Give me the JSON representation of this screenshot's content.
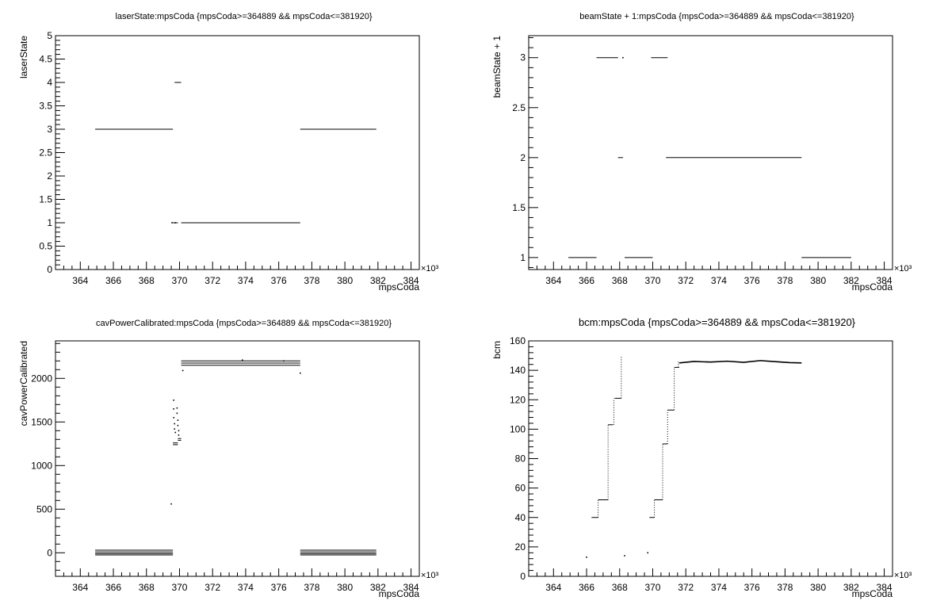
{
  "chart_data": [
    {
      "type": "scatter",
      "title": "laserState:mpsCoda {mpsCoda>=364889 && mpsCoda<=381920}",
      "xlabel": "mpsCoda",
      "ylabel": "laserState",
      "x_multiplier": "×10³",
      "xlim": [
        362.5,
        384.5
      ],
      "ylim": [
        0,
        5
      ],
      "x_ticks": [
        364,
        366,
        368,
        370,
        372,
        374,
        376,
        378,
        380,
        382,
        384
      ],
      "y_ticks": [
        0,
        0.5,
        1,
        1.5,
        2,
        2.5,
        3,
        3.5,
        4,
        4.5,
        5
      ],
      "y_tick_labels": [
        "0",
        "0.5",
        "1",
        "1.5",
        "2",
        "2.5",
        "3",
        "3.5",
        "4",
        "4.5",
        "5"
      ],
      "grid": false,
      "segments": [
        {
          "x": [
            364.9,
            369.6
          ],
          "y": 3
        },
        {
          "x": [
            369.7,
            370.1
          ],
          "y": 4
        },
        {
          "x": [
            369.6,
            369.9
          ],
          "y": 1
        },
        {
          "x": [
            370.1,
            377.3
          ],
          "y": 1
        },
        {
          "x": [
            377.3,
            381.9
          ],
          "y": 3
        }
      ],
      "points": [
        {
          "x": 369.55,
          "y": 1
        },
        {
          "x": 369.75,
          "y": 1
        }
      ]
    },
    {
      "type": "scatter",
      "title": "beamState + 1:mpsCoda {mpsCoda>=364889 && mpsCoda<=381920}",
      "xlabel": "mpsCoda",
      "ylabel": "beamState + 1",
      "x_multiplier": "×10³",
      "xlim": [
        362.5,
        384.5
      ],
      "ylim": [
        0.88,
        3.22
      ],
      "x_ticks": [
        364,
        366,
        368,
        370,
        372,
        374,
        376,
        378,
        380,
        382,
        384
      ],
      "y_ticks": [
        1,
        1.5,
        2,
        2.5,
        3
      ],
      "y_tick_labels": [
        "1",
        "1.5",
        "2",
        "2.5",
        "3"
      ],
      "grid": false,
      "segments": [
        {
          "x": [
            364.9,
            366.6
          ],
          "y": 1
        },
        {
          "x": [
            366.6,
            367.9
          ],
          "y": 3
        },
        {
          "x": [
            367.9,
            368.2
          ],
          "y": 2
        },
        {
          "x": [
            368.3,
            370.0
          ],
          "y": 1
        },
        {
          "x": [
            369.9,
            370.9
          ],
          "y": 3
        },
        {
          "x": [
            370.8,
            379.0
          ],
          "y": 2
        },
        {
          "x": [
            379.0,
            382.0
          ],
          "y": 1
        }
      ],
      "points": [
        {
          "x": 368.2,
          "y": 3
        }
      ]
    },
    {
      "type": "scatter",
      "title": "cavPowerCalibrated:mpsCoda {mpsCoda>=364889 && mpsCoda<=381920}",
      "xlabel": "mpsCoda",
      "ylabel": "cavPowerCalibrated",
      "x_multiplier": "×10³",
      "xlim": [
        362.5,
        384.5
      ],
      "ylim": [
        -270,
        2430
      ],
      "x_ticks": [
        364,
        366,
        368,
        370,
        372,
        374,
        376,
        378,
        380,
        382,
        384
      ],
      "y_ticks": [
        0,
        500,
        1000,
        1500,
        2000
      ],
      "y_tick_labels": [
        "0",
        "500",
        "1000",
        "1500",
        "2000"
      ],
      "grid": false,
      "segments": [
        {
          "x": [
            364.9,
            369.6
          ],
          "y": 30
        },
        {
          "x": [
            364.9,
            369.6
          ],
          "y": 10
        },
        {
          "x": [
            364.9,
            369.6
          ],
          "y": -10
        },
        {
          "x": [
            364.9,
            369.6
          ],
          "y": -25
        },
        {
          "x": [
            369.6,
            369.9
          ],
          "y": 1260
        },
        {
          "x": [
            369.6,
            369.9
          ],
          "y": 1240
        },
        {
          "x": [
            369.9,
            370.1
          ],
          "y": 1310
        },
        {
          "x": [
            369.9,
            370.1
          ],
          "y": 1290
        },
        {
          "x": [
            370.1,
            377.3
          ],
          "y": 2200
        },
        {
          "x": [
            370.1,
            377.3
          ],
          "y": 2175
        },
        {
          "x": [
            370.1,
            377.3
          ],
          "y": 2150
        },
        {
          "x": [
            377.3,
            381.9
          ],
          "y": 30
        },
        {
          "x": [
            377.3,
            381.9
          ],
          "y": 10
        },
        {
          "x": [
            377.3,
            381.9
          ],
          "y": -10
        },
        {
          "x": [
            377.3,
            381.9
          ],
          "y": -25
        }
      ],
      "points": [
        {
          "x": 369.5,
          "y": 560
        },
        {
          "x": 369.65,
          "y": 1750
        },
        {
          "x": 369.65,
          "y": 1650
        },
        {
          "x": 369.65,
          "y": 1550
        },
        {
          "x": 369.7,
          "y": 1480
        },
        {
          "x": 369.7,
          "y": 1420
        },
        {
          "x": 369.75,
          "y": 1380
        },
        {
          "x": 369.85,
          "y": 1660
        },
        {
          "x": 369.85,
          "y": 1600
        },
        {
          "x": 369.9,
          "y": 1520
        },
        {
          "x": 369.9,
          "y": 1460
        },
        {
          "x": 369.95,
          "y": 1400
        },
        {
          "x": 369.95,
          "y": 1350
        },
        {
          "x": 370.2,
          "y": 2090
        },
        {
          "x": 377.3,
          "y": 2060
        },
        {
          "x": 376.3,
          "y": 2200
        },
        {
          "x": 373.8,
          "y": 2210
        }
      ]
    },
    {
      "type": "scatter",
      "title": "bcm:mpsCoda {mpsCoda>=364889 && mpsCoda<=381920}",
      "xlabel": "mpsCoda",
      "ylabel": "bcm",
      "x_multiplier": "×10³",
      "xlim": [
        362.5,
        384.5
      ],
      "ylim": [
        0,
        160
      ],
      "x_ticks": [
        364,
        366,
        368,
        370,
        372,
        374,
        376,
        378,
        380,
        382,
        384
      ],
      "y_ticks": [
        0,
        20,
        40,
        60,
        80,
        100,
        120,
        140,
        160
      ],
      "y_tick_labels": [
        "0",
        "20",
        "40",
        "60",
        "80",
        "100",
        "120",
        "140",
        "160"
      ],
      "grid": false,
      "segments": [
        {
          "x": [
            366.3,
            366.7
          ],
          "y": 40
        },
        {
          "x": [
            366.7,
            367.3
          ],
          "y": 52
        },
        {
          "x": [
            367.3,
            367.6
          ],
          "y": 103
        },
        {
          "x": [
            367.7,
            368.1
          ],
          "y": 121
        },
        {
          "x": [
            369.8,
            370.1
          ],
          "y": 40
        },
        {
          "x": [
            370.1,
            370.6
          ],
          "y": 52
        },
        {
          "x": [
            370.6,
            370.9
          ],
          "y": 90
        },
        {
          "x": [
            370.9,
            371.3
          ],
          "y": 113
        },
        {
          "x": [
            371.3,
            371.6
          ],
          "y": 142
        }
      ],
      "steps": [
        {
          "x": 366.7,
          "y": [
            40,
            52
          ]
        },
        {
          "x": 367.3,
          "y": [
            52,
            103
          ]
        },
        {
          "x": 367.65,
          "y": [
            103,
            121
          ]
        },
        {
          "x": 368.1,
          "y": [
            121,
            149
          ]
        },
        {
          "x": 370.1,
          "y": [
            40,
            52
          ]
        },
        {
          "x": 370.6,
          "y": [
            52,
            90
          ]
        },
        {
          "x": 370.9,
          "y": [
            90,
            113
          ]
        },
        {
          "x": 371.3,
          "y": [
            113,
            142
          ]
        },
        {
          "x": 371.55,
          "y": [
            142,
            146
          ]
        }
      ],
      "plateau": {
        "x": [
          371.6,
          372.5,
          373.5,
          374.5,
          375.5,
          376.5,
          377.5,
          378.3,
          379.0
        ],
        "y": [
          145,
          146,
          145.6,
          146.2,
          145.4,
          146.6,
          145.8,
          145.2,
          145
        ]
      },
      "points": [
        {
          "x": 366.0,
          "y": 13
        },
        {
          "x": 368.3,
          "y": 14
        },
        {
          "x": 369.7,
          "y": 16
        }
      ]
    }
  ]
}
